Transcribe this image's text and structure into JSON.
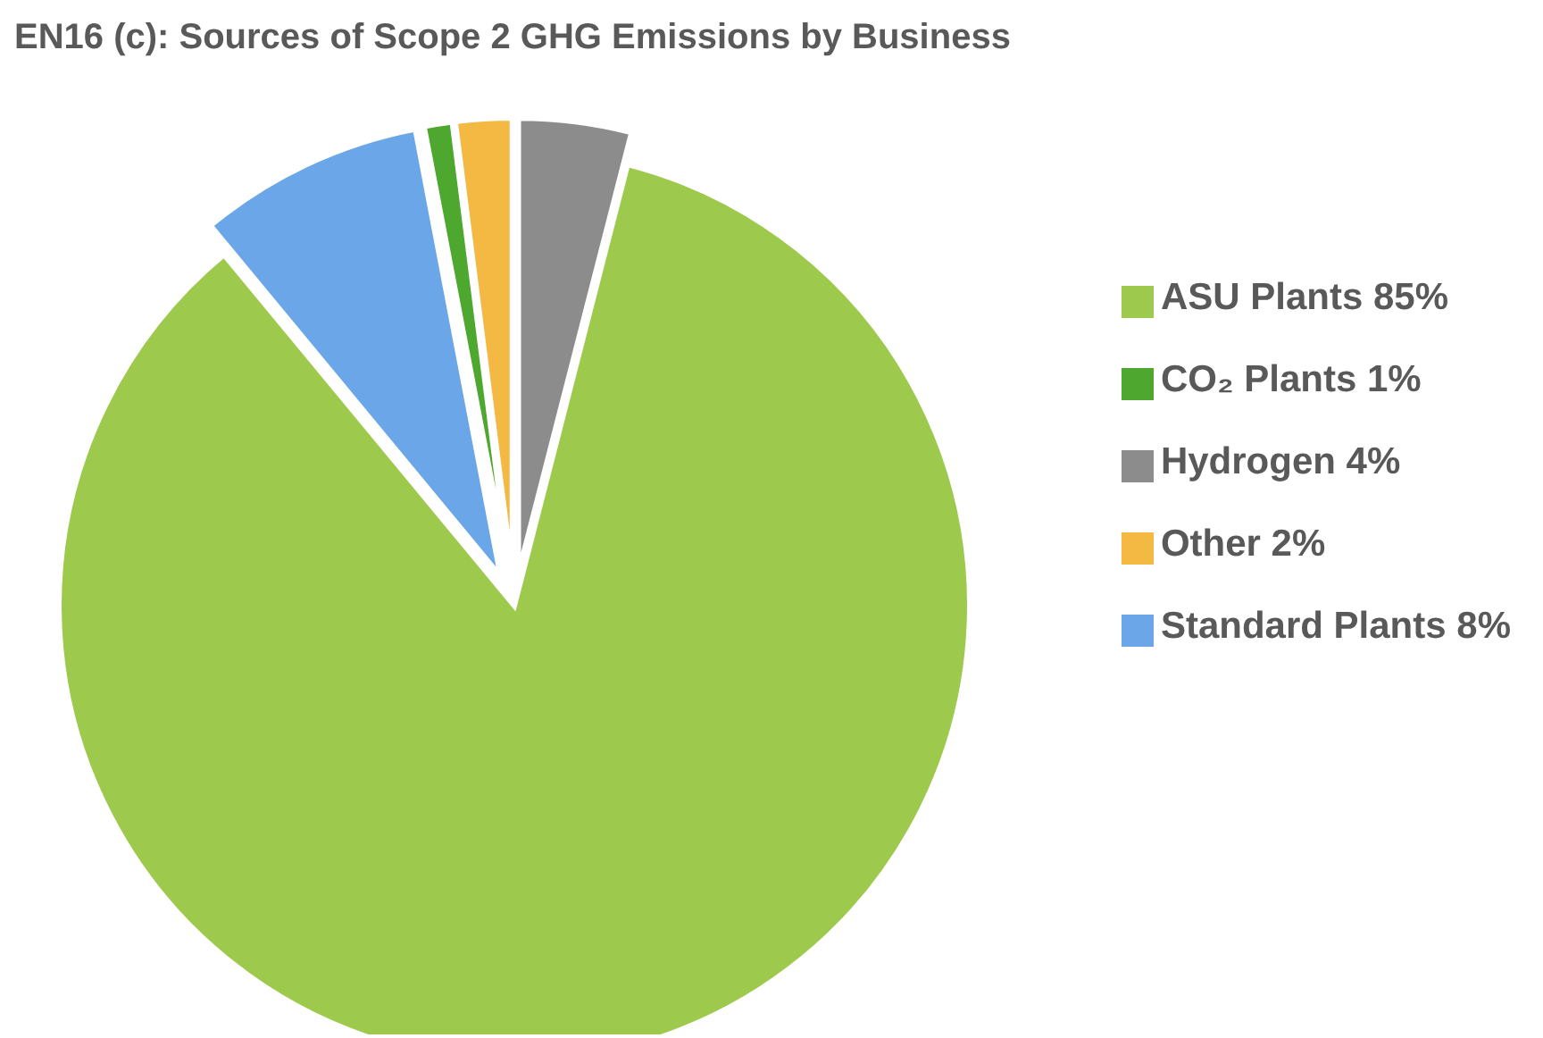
{
  "chart_data": {
    "type": "pie",
    "title": "EN16 (c): Sources of Scope 2 GHG Emissions by Business",
    "categories": [
      "ASU Plants 85%",
      "Standard Plants 8%",
      "CO₂ Plants 1%",
      "Other 2%",
      "Hydrogen 4%"
    ],
    "values": [
      85,
      8,
      1,
      2,
      4
    ],
    "colors": [
      "#9dc94c",
      "#6aa6e8",
      "#4ea72e",
      "#f4b942",
      "#8c8c8c"
    ],
    "legend": "right"
  }
}
